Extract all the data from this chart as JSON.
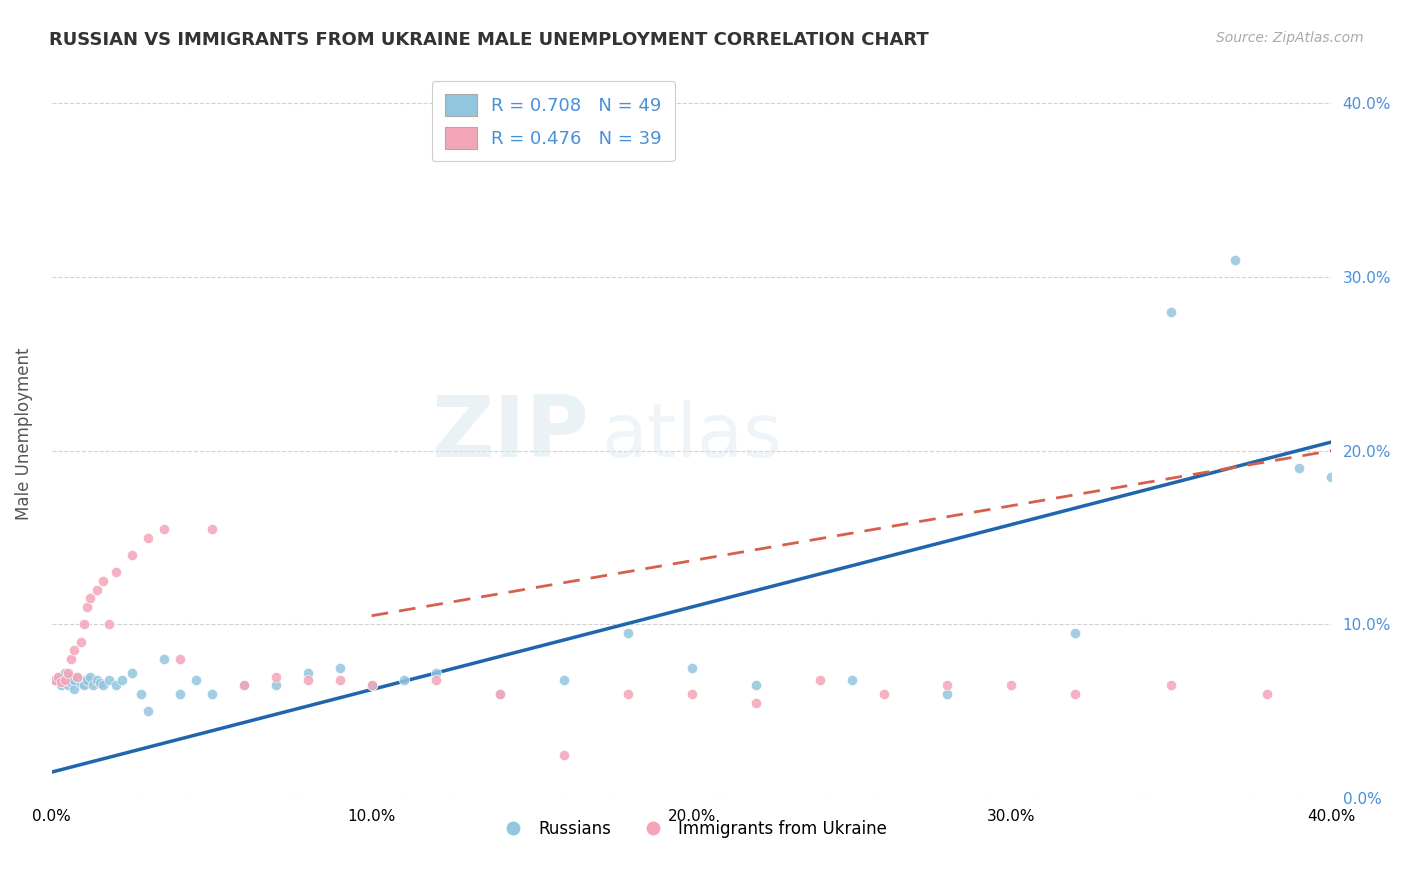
{
  "title": "RUSSIAN VS IMMIGRANTS FROM UKRAINE MALE UNEMPLOYMENT CORRELATION CHART",
  "source": "Source: ZipAtlas.com",
  "ylabel": "Male Unemployment",
  "xmin": 0.0,
  "xmax": 0.4,
  "ymin": 0.0,
  "ymax": 0.42,
  "yticks": [
    0.0,
    0.1,
    0.2,
    0.3,
    0.4
  ],
  "xticks": [
    0.0,
    0.1,
    0.2,
    0.3,
    0.4
  ],
  "watermark_zip": "ZIP",
  "watermark_atlas": "atlas",
  "legend_r1": "R = 0.708",
  "legend_n1": "N = 49",
  "legend_r2": "R = 0.476",
  "legend_n2": "N = 39",
  "color_blue": "#92c5de",
  "color_pink": "#f4a5b8",
  "color_blue_line": "#2166ac",
  "color_pink_line": "#d6604d",
  "russians_x": [
    0.001,
    0.002,
    0.003,
    0.004,
    0.005,
    0.005,
    0.006,
    0.006,
    0.007,
    0.007,
    0.008,
    0.009,
    0.01,
    0.01,
    0.011,
    0.012,
    0.013,
    0.014,
    0.015,
    0.016,
    0.018,
    0.02,
    0.022,
    0.025,
    0.028,
    0.03,
    0.035,
    0.04,
    0.045,
    0.05,
    0.06,
    0.07,
    0.08,
    0.09,
    0.1,
    0.11,
    0.12,
    0.14,
    0.16,
    0.18,
    0.2,
    0.22,
    0.25,
    0.28,
    0.32,
    0.35,
    0.37,
    0.39,
    0.4
  ],
  "russians_y": [
    0.068,
    0.07,
    0.065,
    0.072,
    0.068,
    0.065,
    0.07,
    0.067,
    0.063,
    0.068,
    0.07,
    0.066,
    0.068,
    0.065,
    0.068,
    0.07,
    0.065,
    0.068,
    0.066,
    0.065,
    0.068,
    0.065,
    0.068,
    0.072,
    0.06,
    0.05,
    0.08,
    0.06,
    0.068,
    0.06,
    0.065,
    0.065,
    0.072,
    0.075,
    0.065,
    0.068,
    0.072,
    0.06,
    0.068,
    0.095,
    0.075,
    0.065,
    0.068,
    0.06,
    0.095,
    0.28,
    0.31,
    0.19,
    0.185
  ],
  "ukraine_x": [
    0.001,
    0.002,
    0.003,
    0.004,
    0.005,
    0.006,
    0.007,
    0.008,
    0.009,
    0.01,
    0.011,
    0.012,
    0.014,
    0.016,
    0.018,
    0.02,
    0.025,
    0.03,
    0.035,
    0.04,
    0.05,
    0.06,
    0.07,
    0.08,
    0.09,
    0.1,
    0.12,
    0.14,
    0.16,
    0.18,
    0.2,
    0.22,
    0.24,
    0.26,
    0.28,
    0.3,
    0.32,
    0.35,
    0.38
  ],
  "ukraine_y": [
    0.068,
    0.07,
    0.067,
    0.068,
    0.072,
    0.08,
    0.085,
    0.07,
    0.09,
    0.1,
    0.11,
    0.115,
    0.12,
    0.125,
    0.1,
    0.13,
    0.14,
    0.15,
    0.155,
    0.08,
    0.155,
    0.065,
    0.07,
    0.068,
    0.068,
    0.065,
    0.068,
    0.06,
    0.025,
    0.06,
    0.06,
    0.055,
    0.068,
    0.06,
    0.065,
    0.065,
    0.06,
    0.065,
    0.06
  ],
  "blue_line_x0": 0.0,
  "blue_line_y0": 0.015,
  "blue_line_x1": 0.4,
  "blue_line_y1": 0.205,
  "pink_line_x0": 0.1,
  "pink_line_y0": 0.105,
  "pink_line_x1": 0.4,
  "pink_line_y1": 0.2
}
